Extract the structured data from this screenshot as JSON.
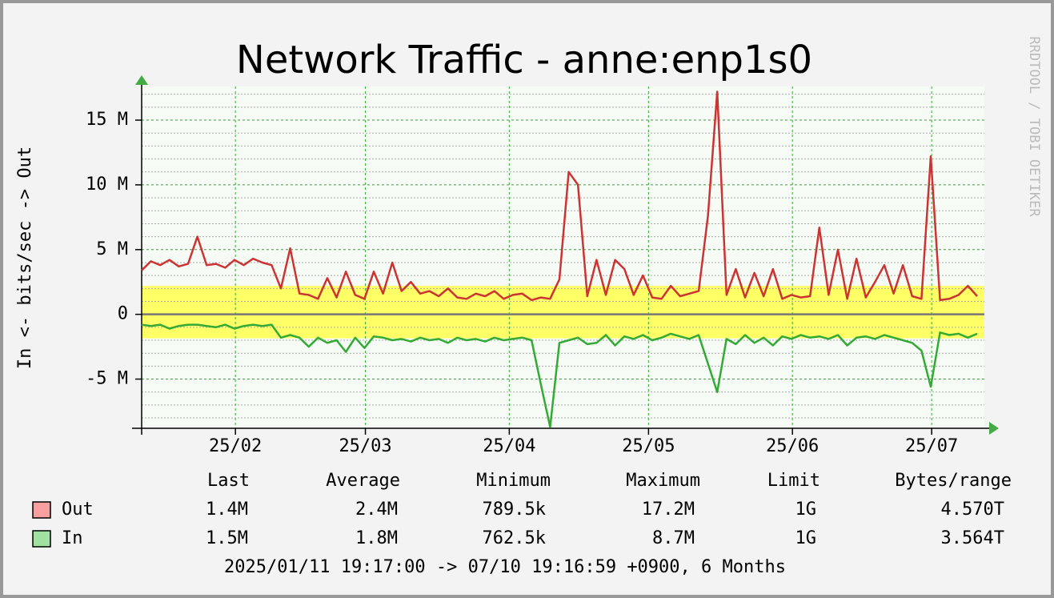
{
  "chart_data": {
    "type": "line",
    "title": "Network Traffic - anne:enp1s0",
    "y_label": "In <-  bits/sec -> Out",
    "watermark": "RRDTOOL / TOBI OETIKER",
    "range_text": "2025/01/11 19:17:00 -> 07/10 19:16:59 +0900, 6 Months",
    "xlim": [
      0,
      180
    ],
    "xticks": [
      {
        "value": 20.2,
        "label": "25/02"
      },
      {
        "value": 48.2,
        "label": "25/03"
      },
      {
        "value": 79.2,
        "label": "25/04"
      },
      {
        "value": 109.2,
        "label": "25/05"
      },
      {
        "value": 140.2,
        "label": "25/06"
      },
      {
        "value": 170.2,
        "label": "25/07"
      }
    ],
    "ylim": [
      -8.8,
      17.6
    ],
    "yticks": [
      {
        "value": -5,
        "label": "-5 M"
      },
      0,
      {
        "value": 5,
        "label": "5 M"
      },
      {
        "value": 10,
        "label": "10 M"
      },
      {
        "value": 15,
        "label": "15 M"
      }
    ],
    "minor_yticks": [
      -8,
      -7,
      -6,
      -4,
      -3,
      -2,
      -1,
      1,
      2,
      3,
      4,
      6,
      7,
      8,
      9,
      11,
      12,
      13,
      14,
      16,
      17
    ],
    "grid": true,
    "band": {
      "range": [
        -1.85,
        2.2
      ],
      "color": "#ffff66"
    },
    "stats_headers": [
      "Last",
      "Average",
      "Minimum",
      "Maximum",
      "Limit",
      "Bytes/range"
    ],
    "series": [
      {
        "name": "Out",
        "color": "#cc3333",
        "swatch_color": "#f8a0a0",
        "values": [
          3.4,
          4.1,
          3.8,
          4.2,
          3.7,
          3.9,
          6.0,
          3.8,
          3.9,
          3.6,
          4.2,
          3.8,
          4.3,
          4.0,
          3.8,
          2.0,
          5.1,
          1.6,
          1.5,
          1.2,
          2.8,
          1.3,
          3.3,
          1.5,
          1.2,
          3.3,
          1.6,
          4.0,
          1.8,
          2.5,
          1.6,
          1.8,
          1.4,
          2.0,
          1.3,
          1.2,
          1.6,
          1.4,
          1.8,
          1.2,
          1.5,
          1.6,
          1.1,
          1.3,
          1.2,
          2.7,
          11.0,
          10.0,
          1.4,
          4.2,
          1.5,
          4.2,
          3.5,
          1.5,
          3.0,
          1.3,
          1.2,
          2.2,
          1.4,
          1.6,
          1.8,
          7.6,
          17.2,
          1.5,
          3.5,
          1.3,
          3.2,
          1.4,
          3.5,
          1.2,
          1.5,
          1.3,
          1.4,
          6.7,
          1.5,
          5.0,
          1.2,
          4.3,
          1.3,
          2.5,
          3.8,
          1.6,
          3.8,
          1.4,
          1.2,
          12.2,
          1.1,
          1.2,
          1.5,
          2.2,
          1.4
        ],
        "stats": [
          "1.4M",
          "2.4M",
          "789.5k",
          "17.2M",
          "1G",
          "4.570T"
        ]
      },
      {
        "name": "In",
        "color": "#33aa33",
        "swatch_color": "#a0e0a0",
        "values": [
          -0.8,
          -0.9,
          -0.8,
          -1.1,
          -0.9,
          -0.8,
          -0.8,
          -0.9,
          -1.0,
          -0.8,
          -1.1,
          -0.9,
          -0.8,
          -0.9,
          -0.8,
          -1.8,
          -1.6,
          -1.8,
          -2.5,
          -1.8,
          -2.2,
          -2.0,
          -2.9,
          -1.8,
          -2.6,
          -1.7,
          -1.8,
          -2.0,
          -1.9,
          -2.1,
          -1.8,
          -2.0,
          -1.9,
          -2.2,
          -1.8,
          -2.0,
          -1.9,
          -2.1,
          -1.8,
          -2.0,
          -1.9,
          -1.8,
          -2.0,
          -5.4,
          -8.7,
          -2.2,
          -2.0,
          -1.8,
          -2.3,
          -2.2,
          -1.6,
          -2.4,
          -1.7,
          -1.9,
          -1.6,
          -2.0,
          -1.8,
          -1.5,
          -1.7,
          -1.9,
          -1.6,
          -3.8,
          -6.0,
          -1.9,
          -2.3,
          -1.6,
          -2.2,
          -1.8,
          -2.4,
          -1.7,
          -1.9,
          -1.6,
          -1.8,
          -1.7,
          -1.9,
          -1.6,
          -2.4,
          -1.8,
          -1.7,
          -1.9,
          -1.6,
          -1.8,
          -2.0,
          -2.2,
          -2.8,
          -5.6,
          -1.4,
          -1.6,
          -1.5,
          -1.8,
          -1.5
        ],
        "stats": [
          "1.5M",
          "1.8M",
          "762.5k",
          "8.7M",
          "1G",
          "3.564T"
        ]
      }
    ]
  }
}
